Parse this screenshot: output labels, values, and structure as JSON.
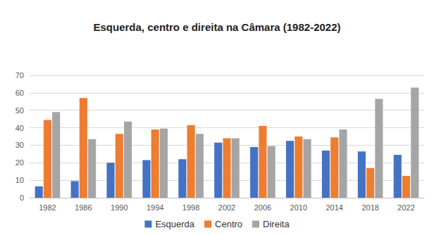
{
  "chart_data": {
    "type": "bar",
    "title": "Esquerda, centro e direita na Câmara (1982-2022)",
    "categories": [
      "1982",
      "1986",
      "1990",
      "1994",
      "1998",
      "2002",
      "2006",
      "2010",
      "2014",
      "2018",
      "2022"
    ],
    "series": [
      {
        "name": "Esquerda",
        "color": "#4472c4",
        "values": [
          6.5,
          9.5,
          20,
          21.5,
          22,
          31.5,
          29,
          32.5,
          27,
          26.5,
          24.5
        ]
      },
      {
        "name": "Centro",
        "color": "#ed7d31",
        "values": [
          44.5,
          57,
          36.5,
          39,
          41.5,
          34,
          41,
          35,
          34.5,
          17,
          12.5
        ]
      },
      {
        "name": "Direita",
        "color": "#a5a5a5",
        "values": [
          49,
          33.5,
          43.5,
          39.5,
          36.5,
          34,
          29.5,
          33.5,
          39,
          56.5,
          63
        ]
      }
    ],
    "ylim": [
      0,
      70
    ],
    "yticks": [
      0,
      10,
      20,
      30,
      40,
      50,
      60,
      70
    ],
    "grid": true,
    "legend": "bottom"
  }
}
